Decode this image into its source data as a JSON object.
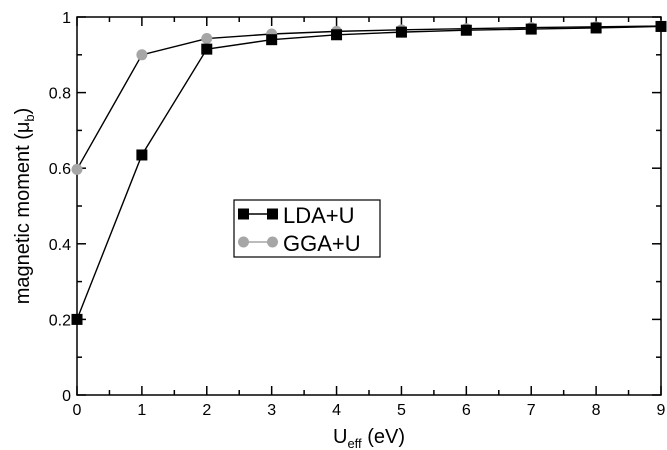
{
  "chart_data": {
    "type": "line",
    "xlabel": "U",
    "xlabel_sub": "eff",
    "xlabel_suffix": " (eV)",
    "ylabel": "magnetic moment (μ",
    "ylabel_sub": "b",
    "ylabel_suffix": ")",
    "xlim": [
      0,
      9
    ],
    "ylim": [
      0,
      1
    ],
    "xticks": [
      "0",
      "1",
      "2",
      "3",
      "4",
      "5",
      "6",
      "7",
      "8",
      "9"
    ],
    "yticks": [
      "0",
      "0.2",
      "0.4",
      "0.6",
      "0.8",
      "1"
    ],
    "x": [
      0,
      1,
      2,
      3,
      4,
      5,
      6,
      7,
      8,
      9
    ],
    "series": [
      {
        "name": "LDA+U",
        "marker": "square",
        "color": "#000000",
        "values": [
          0.2,
          0.635,
          0.915,
          0.94,
          0.953,
          0.96,
          0.965,
          0.968,
          0.971,
          0.975
        ]
      },
      {
        "name": "GGA+U",
        "marker": "circle",
        "color": "#a6a6a6",
        "values": [
          0.597,
          0.9,
          0.943,
          0.955,
          0.962,
          0.966,
          0.969,
          0.972,
          0.974,
          0.976
        ]
      }
    ],
    "grid": false,
    "legend_placement": "center"
  }
}
